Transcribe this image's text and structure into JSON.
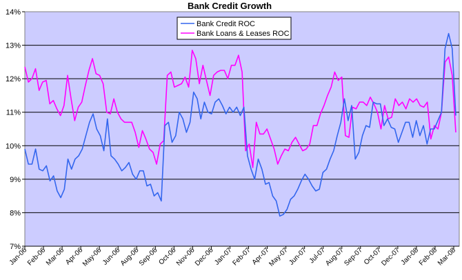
{
  "chart_data": {
    "type": "line",
    "title": "Bank Credit Growth",
    "ylim": [
      7,
      14
    ],
    "y_ticks": [
      "7%",
      "8%",
      "9%",
      "10%",
      "11%",
      "12%",
      "13%",
      "14%"
    ],
    "x_labels": [
      "Jan-06",
      "Feb-06",
      "Mar-06",
      "Apr-06",
      "May-06",
      "Jun-06",
      "Aug-06",
      "Sep-06",
      "Oct-06",
      "Nov-06",
      "Dec-06",
      "Jan-07",
      "Feb-07",
      "Apr-07",
      "May-07",
      "Jun-07",
      "Jul-07",
      "Aug-07",
      "Sep-07",
      "Oct-07",
      "Dec-07",
      "Jan-08",
      "Feb-08",
      "Mar-08"
    ],
    "plot_background": "#ccccff",
    "grid": "horizontal",
    "legend_position": "top-center",
    "series": [
      {
        "name": "Bank Credit ROC",
        "color": "#3366ee",
        "values": [
          9.9,
          9.45,
          9.45,
          9.9,
          9.3,
          9.25,
          9.4,
          8.95,
          9.1,
          8.65,
          8.45,
          8.7,
          9.6,
          9.3,
          9.6,
          9.7,
          9.9,
          10.3,
          10.7,
          10.95,
          10.5,
          10.3,
          9.85,
          10.8,
          9.7,
          9.6,
          9.45,
          9.25,
          9.35,
          9.5,
          9.15,
          9.0,
          9.25,
          9.25,
          8.8,
          8.85,
          8.5,
          8.6,
          8.35,
          10.6,
          10.7,
          10.1,
          10.3,
          11.0,
          10.8,
          10.4,
          10.7,
          11.6,
          11.4,
          10.8,
          11.3,
          11.0,
          10.95,
          11.3,
          11.4,
          11.2,
          10.95,
          11.15,
          11.0,
          11.15,
          10.9,
          11.15,
          9.7,
          9.3,
          9.0,
          9.6,
          9.3,
          8.85,
          8.9,
          8.5,
          8.35,
          7.9,
          7.95,
          8.1,
          8.4,
          8.5,
          8.7,
          8.95,
          9.15,
          9.0,
          8.8,
          8.65,
          8.7,
          9.2,
          9.3,
          9.6,
          9.85,
          10.3,
          10.7,
          11.4,
          10.75,
          11.2,
          9.6,
          9.8,
          10.3,
          10.6,
          10.55,
          11.3,
          11.25,
          11.25,
          10.6,
          10.8,
          10.55,
          10.5,
          10.1,
          10.4,
          10.7,
          10.7,
          10.25,
          10.75,
          10.3,
          10.6,
          10.05,
          10.5,
          10.5,
          10.75,
          11.0,
          12.9,
          13.35,
          12.9,
          10.9
        ]
      },
      {
        "name": "Bank Loans & Leases ROC",
        "color": "#ff00ff",
        "values": [
          12.35,
          11.9,
          12.0,
          12.3,
          11.65,
          11.9,
          11.95,
          11.25,
          11.35,
          11.1,
          10.9,
          11.2,
          12.1,
          11.4,
          10.75,
          11.15,
          11.3,
          11.8,
          12.25,
          12.6,
          12.15,
          12.1,
          11.85,
          11.0,
          10.95,
          11.4,
          11.0,
          10.8,
          10.7,
          10.7,
          10.7,
          10.4,
          9.95,
          10.45,
          10.2,
          9.9,
          9.8,
          9.45,
          10.05,
          10.15,
          12.1,
          12.2,
          11.75,
          11.8,
          11.85,
          12.05,
          11.75,
          12.85,
          12.6,
          11.85,
          12.4,
          11.95,
          11.5,
          12.1,
          12.2,
          12.25,
          12.25,
          12.0,
          12.4,
          12.4,
          12.7,
          12.2,
          9.85,
          10.05,
          9.35,
          10.7,
          10.35,
          10.35,
          10.5,
          10.2,
          9.9,
          9.45,
          9.7,
          9.9,
          9.85,
          10.1,
          10.25,
          10.05,
          9.85,
          9.9,
          10.05,
          10.6,
          10.6,
          10.95,
          11.2,
          11.5,
          11.75,
          12.2,
          11.95,
          12.05,
          10.3,
          10.25,
          11.15,
          11.1,
          11.3,
          11.3,
          11.2,
          11.45,
          11.25,
          11.0,
          10.5,
          11.2,
          10.8,
          10.85,
          11.4,
          11.2,
          11.3,
          11.1,
          11.4,
          11.3,
          11.4,
          11.2,
          11.15,
          11.3,
          10.2,
          10.6,
          10.5,
          11.0,
          12.5,
          12.65,
          12.1,
          10.4
        ]
      }
    ]
  }
}
